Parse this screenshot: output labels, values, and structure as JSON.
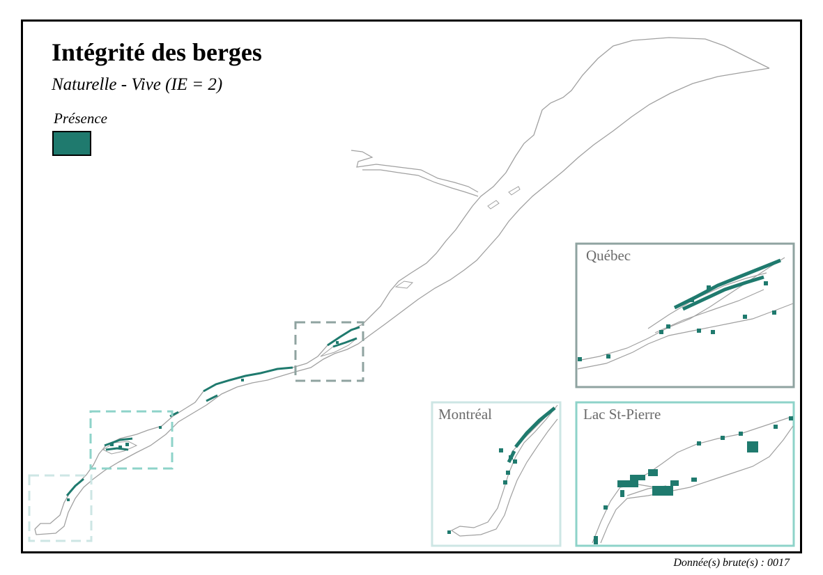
{
  "title": "Intégrité des berges",
  "subtitle": "Naturelle - Vive (IE = 2)",
  "legend": {
    "label": "Présence",
    "color": "#1f7a6e"
  },
  "insets": [
    {
      "label": "Québec",
      "frame_color": "#8fa3a0"
    },
    {
      "label": "Montréal",
      "frame_color": "#cde6e4"
    },
    {
      "label": "Lac St-Pierre",
      "frame_color": "#8ed3c9"
    }
  ],
  "footer": "Donnée(s) brute(s) : 0017",
  "colors": {
    "river_outline": "#a0a0a0",
    "presence": "#1f7a6e"
  }
}
